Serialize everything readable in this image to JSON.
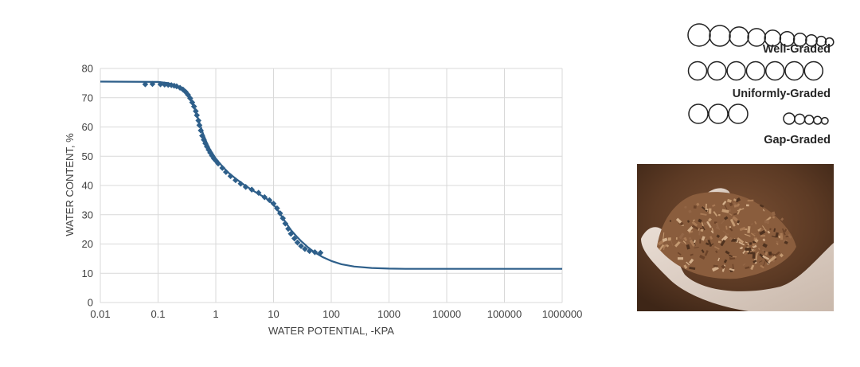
{
  "chart_data": {
    "type": "scatter",
    "title": "",
    "xlabel": "WATER POTENTIAL, -KPA",
    "ylabel": "WATER CONTENT, %",
    "x_scale": "log",
    "xlim": [
      0.01,
      1000000
    ],
    "ylim": [
      0,
      80
    ],
    "x_ticks": [
      0.01,
      0.1,
      1,
      10,
      100,
      1000,
      10000,
      100000,
      1000000
    ],
    "x_tick_labels": [
      "0.01",
      "0.1",
      "1",
      "10",
      "100",
      "1000",
      "10000",
      "100000",
      "1000000"
    ],
    "y_ticks": [
      0,
      10,
      20,
      30,
      40,
      50,
      60,
      70,
      80
    ],
    "y_tick_labels": [
      "0",
      "10",
      "20",
      "30",
      "40",
      "50",
      "60",
      "70",
      "80"
    ],
    "grid": true,
    "series_color": "#2e5f8a",
    "series": [
      {
        "kind": "measured-points",
        "x": [
          0.06,
          0.08,
          0.11,
          0.13,
          0.15,
          0.17,
          0.19,
          0.21,
          0.24,
          0.27,
          0.3,
          0.33,
          0.36,
          0.39,
          0.42,
          0.45,
          0.47,
          0.5,
          0.52,
          0.55,
          0.58,
          0.62,
          0.66,
          0.7,
          0.75,
          0.8,
          0.86,
          0.93,
          1.0,
          1.1,
          1.3,
          1.5,
          1.8,
          2.2,
          2.7,
          3.3,
          4.2,
          5.5,
          7,
          8.5,
          10,
          11.5,
          13,
          14.5,
          16,
          18,
          20,
          23,
          26,
          30,
          35,
          42,
          52,
          65
        ],
        "y": [
          74.6,
          74.7,
          74.6,
          74.5,
          74.4,
          74.3,
          74.1,
          73.9,
          73.4,
          72.8,
          72,
          71,
          69.8,
          68.4,
          67,
          65.4,
          64,
          62.2,
          60.6,
          58.8,
          57,
          55.6,
          54.4,
          53.3,
          52.2,
          51.2,
          50.2,
          49.2,
          48.5,
          47.5,
          46,
          44.6,
          43.2,
          41.8,
          40.6,
          39.5,
          38.6,
          37.5,
          36,
          35,
          33.8,
          32.2,
          30.5,
          28.8,
          27,
          25.2,
          23.5,
          21.9,
          20.5,
          19.3,
          18.3,
          17.6,
          17.2,
          17
        ]
      },
      {
        "kind": "fitted-curve",
        "x": [
          0.01,
          0.1,
          0.15,
          0.2,
          0.25,
          0.3,
          0.35,
          0.4,
          0.45,
          0.5,
          0.55,
          0.6,
          0.7,
          0.8,
          1.0,
          1.3,
          1.7,
          2.2,
          3,
          4,
          5,
          6,
          7,
          8,
          10,
          12,
          14,
          17,
          20,
          25,
          30,
          40,
          50,
          70,
          100,
          150,
          250,
          500,
          1000,
          2000,
          5000,
          10000,
          100000,
          1000000
        ],
        "y": [
          75.5,
          75.4,
          75.0,
          74.3,
          73.2,
          71.8,
          70.0,
          67.8,
          65.2,
          62.5,
          60.0,
          57.8,
          54.5,
          52.2,
          49.2,
          46.5,
          44.2,
          42.4,
          40.4,
          38.8,
          37.6,
          36.7,
          36.0,
          35.1,
          33.5,
          31.4,
          29.3,
          26.8,
          24.8,
          22.6,
          21.0,
          18.8,
          17.3,
          15.6,
          14.2,
          13.1,
          12.3,
          11.8,
          11.6,
          11.5,
          11.5,
          11.5,
          11.5,
          11.5
        ]
      }
    ]
  },
  "legend": {
    "well_graded": {
      "label": "Well-Graded",
      "circle_relative_sizes": [
        1.0,
        0.93,
        0.86,
        0.79,
        0.72,
        0.65,
        0.58,
        0.51,
        0.44,
        0.37
      ]
    },
    "uniformly_graded": {
      "label": "Uniformly-Graded",
      "circle_count": 7
    },
    "gap_graded": {
      "label": "Gap-Graded",
      "large_count": 3,
      "small_count": 5
    }
  },
  "photo": {
    "subject": "hand-holding-bark-compost"
  }
}
